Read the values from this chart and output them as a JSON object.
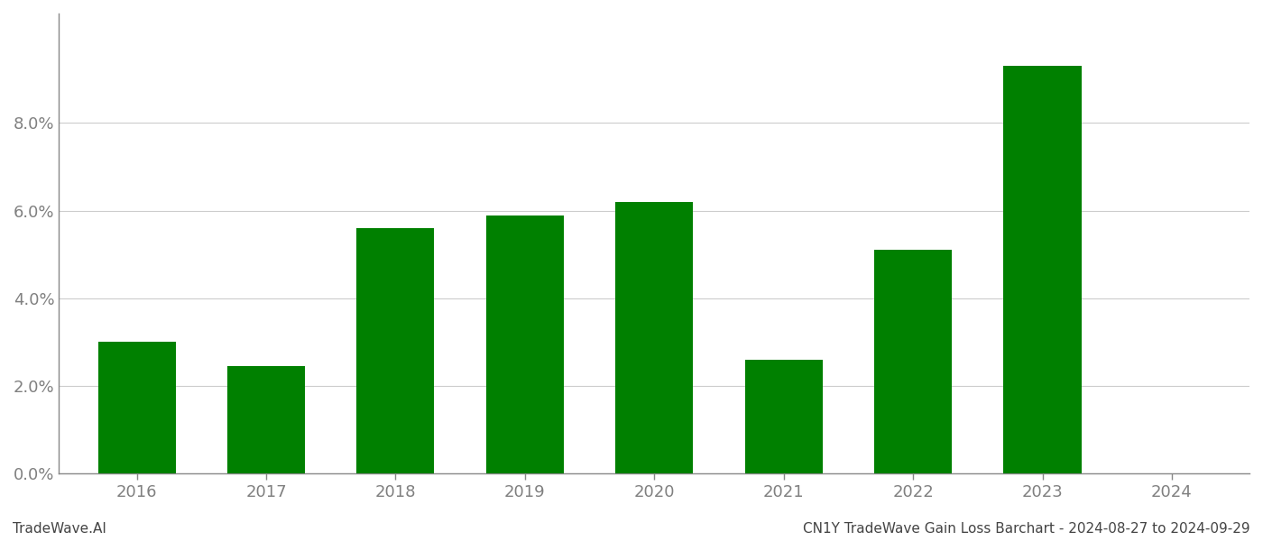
{
  "years": [
    2016,
    2017,
    2018,
    2019,
    2020,
    2021,
    2022,
    2023,
    2024
  ],
  "values": [
    0.03,
    0.0245,
    0.056,
    0.059,
    0.062,
    0.026,
    0.051,
    0.093,
    null
  ],
  "bar_color": "#008000",
  "background_color": "#ffffff",
  "grid_color": "#cccccc",
  "axis_color": "#888888",
  "tick_color": "#808080",
  "ylim": [
    0,
    0.105
  ],
  "yticks": [
    0.0,
    0.02,
    0.04,
    0.06,
    0.08
  ],
  "footer_left": "TradeWave.AI",
  "footer_right": "CN1Y TradeWave Gain Loss Barchart - 2024-08-27 to 2024-09-29",
  "footer_fontsize": 11,
  "tick_fontsize": 13,
  "bar_width": 0.6,
  "xlim": [
    2015.4,
    2024.6
  ]
}
